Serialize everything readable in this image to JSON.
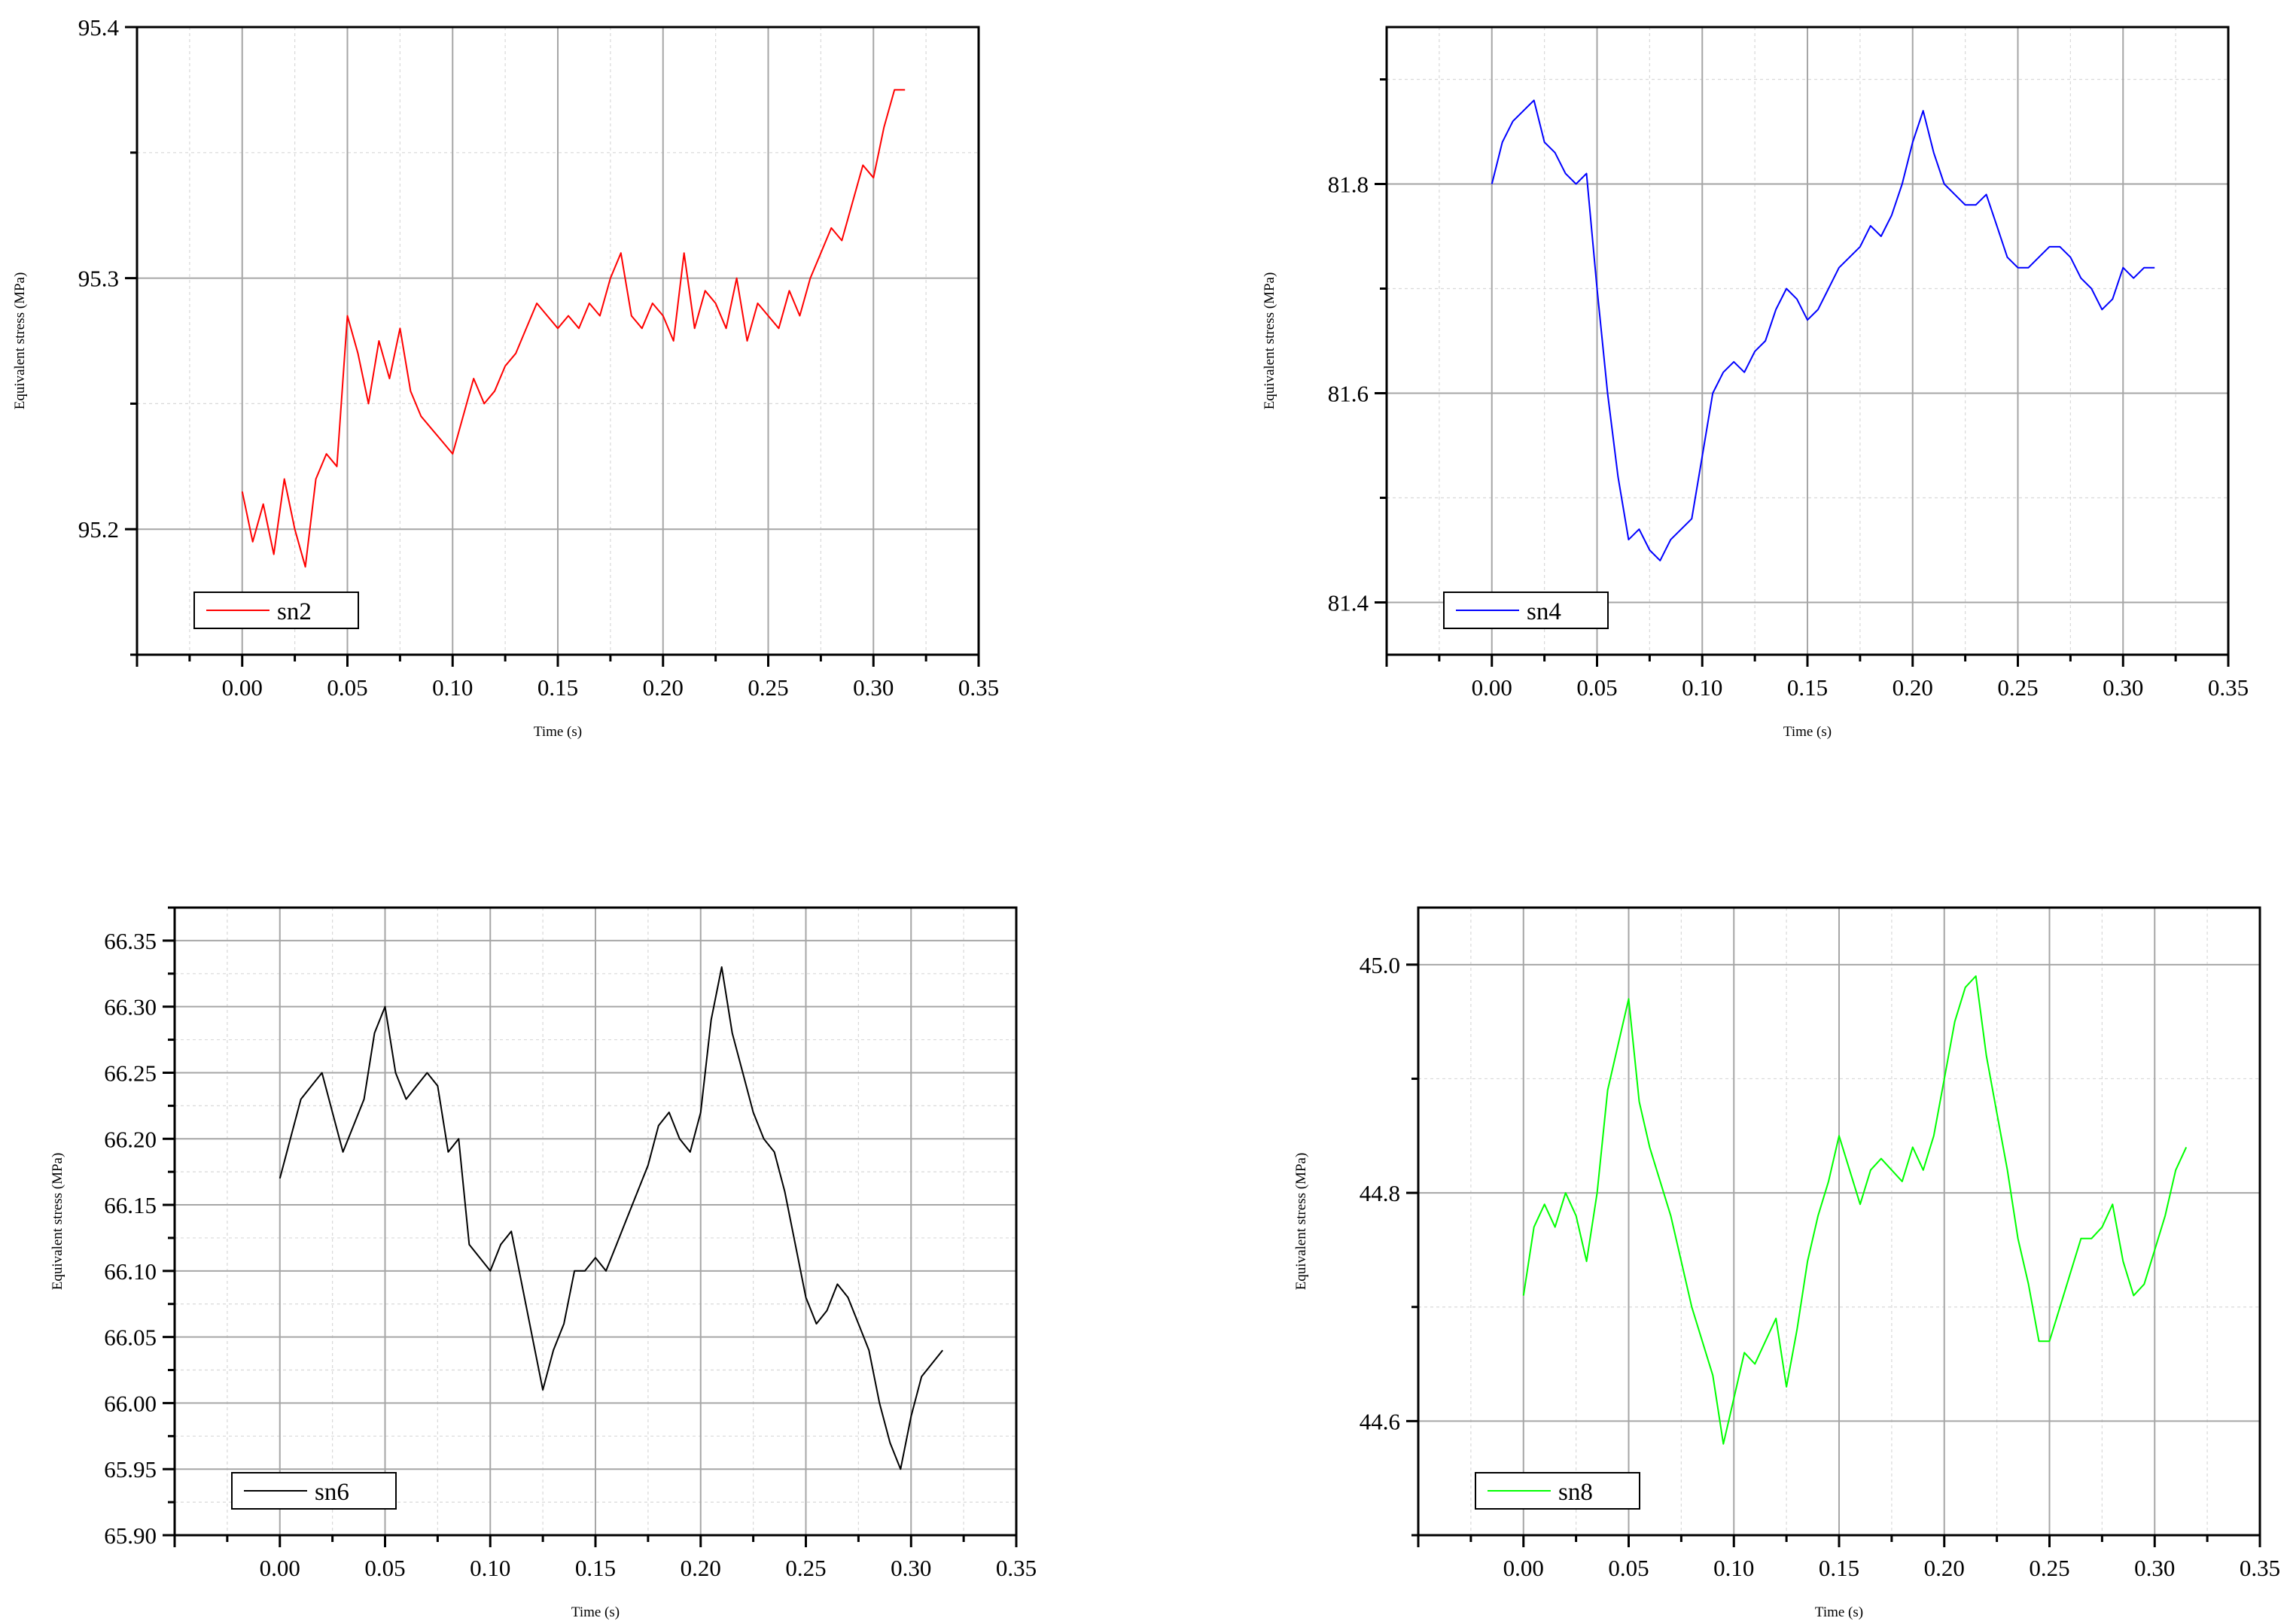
{
  "chart_data": [
    {
      "type": "line",
      "xlabel": "Time (s)",
      "ylabel": "Equivalent stress (MPa)",
      "xlim": [
        -0.05,
        0.35
      ],
      "ylim": [
        95.15,
        95.4
      ],
      "x_ticks": [
        "0.00",
        "0.05",
        "0.10",
        "0.15",
        "0.20",
        "0.25",
        "0.30",
        "0.35"
      ],
      "y_ticks": [
        "95.2",
        "95.3",
        "95.4"
      ],
      "grid": true,
      "legend_position": "bottom-left",
      "series": [
        {
          "name": "sn2",
          "color": "#ff0000",
          "x": [
            0.0,
            0.005,
            0.01,
            0.015,
            0.02,
            0.025,
            0.03,
            0.035,
            0.04,
            0.045,
            0.05,
            0.055,
            0.06,
            0.065,
            0.07,
            0.075,
            0.08,
            0.085,
            0.09,
            0.095,
            0.1,
            0.105,
            0.11,
            0.115,
            0.12,
            0.125,
            0.13,
            0.135,
            0.14,
            0.145,
            0.15,
            0.155,
            0.16,
            0.165,
            0.17,
            0.175,
            0.18,
            0.185,
            0.19,
            0.195,
            0.2,
            0.205,
            0.21,
            0.215,
            0.22,
            0.225,
            0.23,
            0.235,
            0.24,
            0.245,
            0.25,
            0.255,
            0.26,
            0.265,
            0.27,
            0.275,
            0.28,
            0.285,
            0.29,
            0.295,
            0.3,
            0.305,
            0.31,
            0.315
          ],
          "y": [
            95.215,
            95.195,
            95.21,
            95.19,
            95.22,
            95.2,
            95.185,
            95.22,
            95.23,
            95.225,
            95.285,
            95.27,
            95.25,
            95.275,
            95.26,
            95.28,
            95.255,
            95.245,
            95.24,
            95.235,
            95.23,
            95.245,
            95.26,
            95.25,
            95.255,
            95.265,
            95.27,
            95.28,
            95.29,
            95.285,
            95.28,
            95.285,
            95.28,
            95.29,
            95.285,
            95.3,
            95.31,
            95.285,
            95.28,
            95.29,
            95.285,
            95.275,
            95.31,
            95.28,
            95.295,
            95.29,
            95.28,
            95.3,
            95.275,
            95.29,
            95.285,
            95.28,
            95.295,
            95.285,
            95.3,
            95.31,
            95.32,
            95.315,
            95.33,
            95.345,
            95.34,
            95.36,
            95.375,
            95.375
          ]
        }
      ]
    },
    {
      "type": "line",
      "xlabel": "Time (s)",
      "ylabel": "Equivalent stress (MPa)",
      "xlim": [
        -0.05,
        0.35
      ],
      "ylim": [
        81.35,
        81.95
      ],
      "x_ticks": [
        "0.00",
        "0.05",
        "0.10",
        "0.15",
        "0.20",
        "0.25",
        "0.30",
        "0.35"
      ],
      "y_ticks": [
        "81.4",
        "81.6",
        "81.8"
      ],
      "grid": true,
      "legend_position": "bottom-left",
      "series": [
        {
          "name": "sn4",
          "color": "#0000ff",
          "x": [
            0.0,
            0.005,
            0.01,
            0.015,
            0.02,
            0.025,
            0.03,
            0.035,
            0.04,
            0.045,
            0.05,
            0.055,
            0.06,
            0.065,
            0.07,
            0.075,
            0.08,
            0.085,
            0.09,
            0.095,
            0.1,
            0.105,
            0.11,
            0.115,
            0.12,
            0.125,
            0.13,
            0.135,
            0.14,
            0.145,
            0.15,
            0.155,
            0.16,
            0.165,
            0.17,
            0.175,
            0.18,
            0.185,
            0.19,
            0.195,
            0.2,
            0.205,
            0.21,
            0.215,
            0.22,
            0.225,
            0.23,
            0.235,
            0.24,
            0.245,
            0.25,
            0.255,
            0.26,
            0.265,
            0.27,
            0.275,
            0.28,
            0.285,
            0.29,
            0.295,
            0.3,
            0.305,
            0.31,
            0.315
          ],
          "y": [
            81.8,
            81.84,
            81.86,
            81.87,
            81.88,
            81.84,
            81.83,
            81.81,
            81.8,
            81.81,
            81.7,
            81.6,
            81.52,
            81.46,
            81.47,
            81.45,
            81.44,
            81.46,
            81.47,
            81.48,
            81.54,
            81.6,
            81.62,
            81.63,
            81.62,
            81.64,
            81.65,
            81.68,
            81.7,
            81.69,
            81.67,
            81.68,
            81.7,
            81.72,
            81.73,
            81.74,
            81.76,
            81.75,
            81.77,
            81.8,
            81.84,
            81.87,
            81.83,
            81.8,
            81.79,
            81.78,
            81.78,
            81.79,
            81.76,
            81.73,
            81.72,
            81.72,
            81.73,
            81.74,
            81.74,
            81.73,
            81.71,
            81.7,
            81.68,
            81.69,
            81.72,
            81.71,
            81.72,
            81.72
          ]
        }
      ]
    },
    {
      "type": "line",
      "xlabel": "Time (s)",
      "ylabel": "Equivalent stress (MPa)",
      "xlim": [
        -0.05,
        0.35
      ],
      "ylim": [
        65.9,
        66.375
      ],
      "x_ticks": [
        "0.00",
        "0.05",
        "0.10",
        "0.15",
        "0.20",
        "0.25",
        "0.30",
        "0.35"
      ],
      "y_ticks": [
        "65.90",
        "65.95",
        "66.00",
        "66.05",
        "66.10",
        "66.15",
        "66.20",
        "66.25",
        "66.30",
        "66.35"
      ],
      "grid": true,
      "legend_position": "bottom-left",
      "series": [
        {
          "name": "sn6",
          "color": "#000000",
          "x": [
            0.0,
            0.005,
            0.01,
            0.015,
            0.02,
            0.025,
            0.03,
            0.035,
            0.04,
            0.045,
            0.05,
            0.055,
            0.06,
            0.065,
            0.07,
            0.075,
            0.08,
            0.085,
            0.09,
            0.095,
            0.1,
            0.105,
            0.11,
            0.115,
            0.12,
            0.125,
            0.13,
            0.135,
            0.14,
            0.145,
            0.15,
            0.155,
            0.16,
            0.165,
            0.17,
            0.175,
            0.18,
            0.185,
            0.19,
            0.195,
            0.2,
            0.205,
            0.21,
            0.215,
            0.22,
            0.225,
            0.23,
            0.235,
            0.24,
            0.245,
            0.25,
            0.255,
            0.26,
            0.265,
            0.27,
            0.275,
            0.28,
            0.285,
            0.29,
            0.295,
            0.3,
            0.305,
            0.31,
            0.315
          ],
          "y": [
            66.17,
            66.2,
            66.23,
            66.24,
            66.25,
            66.22,
            66.19,
            66.21,
            66.23,
            66.28,
            66.3,
            66.25,
            66.23,
            66.24,
            66.25,
            66.24,
            66.19,
            66.2,
            66.12,
            66.11,
            66.1,
            66.12,
            66.13,
            66.09,
            66.05,
            66.01,
            66.04,
            66.06,
            66.1,
            66.1,
            66.11,
            66.1,
            66.12,
            66.14,
            66.16,
            66.18,
            66.21,
            66.22,
            66.2,
            66.19,
            66.22,
            66.29,
            66.33,
            66.28,
            66.25,
            66.22,
            66.2,
            66.19,
            66.16,
            66.12,
            66.08,
            66.06,
            66.07,
            66.09,
            66.08,
            66.06,
            66.04,
            66.0,
            65.97,
            65.95,
            65.99,
            66.02,
            66.03,
            66.04
          ]
        }
      ]
    },
    {
      "type": "line",
      "xlabel": "Time (s)",
      "ylabel": "Equivalent stress (MPa)",
      "xlim": [
        -0.05,
        0.35
      ],
      "ylim": [
        44.5,
        45.05
      ],
      "x_ticks": [
        "0.00",
        "0.05",
        "0.10",
        "0.15",
        "0.20",
        "0.25",
        "0.30",
        "0.35"
      ],
      "y_ticks": [
        "44.6",
        "44.8",
        "45.0"
      ],
      "grid": true,
      "legend_position": "bottom-left",
      "series": [
        {
          "name": "sn8",
          "color": "#00ff00",
          "x": [
            0.0,
            0.005,
            0.01,
            0.015,
            0.02,
            0.025,
            0.03,
            0.035,
            0.04,
            0.045,
            0.05,
            0.055,
            0.06,
            0.065,
            0.07,
            0.075,
            0.08,
            0.085,
            0.09,
            0.095,
            0.1,
            0.105,
            0.11,
            0.115,
            0.12,
            0.125,
            0.13,
            0.135,
            0.14,
            0.145,
            0.15,
            0.155,
            0.16,
            0.165,
            0.17,
            0.175,
            0.18,
            0.185,
            0.19,
            0.195,
            0.2,
            0.205,
            0.21,
            0.215,
            0.22,
            0.225,
            0.23,
            0.235,
            0.24,
            0.245,
            0.25,
            0.255,
            0.26,
            0.265,
            0.27,
            0.275,
            0.28,
            0.285,
            0.29,
            0.295,
            0.3,
            0.305,
            0.31,
            0.315
          ],
          "y": [
            44.71,
            44.77,
            44.79,
            44.77,
            44.8,
            44.78,
            44.74,
            44.8,
            44.89,
            44.93,
            44.97,
            44.88,
            44.84,
            44.81,
            44.78,
            44.74,
            44.7,
            44.67,
            44.64,
            44.58,
            44.62,
            44.66,
            44.65,
            44.67,
            44.69,
            44.63,
            44.68,
            44.74,
            44.78,
            44.81,
            44.85,
            44.82,
            44.79,
            44.82,
            44.83,
            44.82,
            44.81,
            44.84,
            44.82,
            44.85,
            44.9,
            44.95,
            44.98,
            44.99,
            44.92,
            44.87,
            44.82,
            44.76,
            44.72,
            44.67,
            44.67,
            44.7,
            44.73,
            44.76,
            44.76,
            44.77,
            44.79,
            44.74,
            44.71,
            44.72,
            44.75,
            44.78,
            44.82,
            44.84
          ]
        }
      ]
    }
  ]
}
